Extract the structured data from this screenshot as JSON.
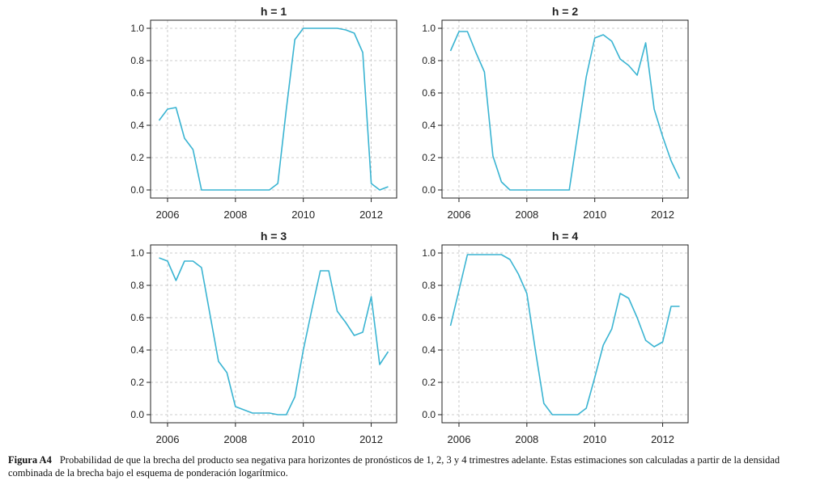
{
  "chart_data": [
    {
      "type": "line",
      "title": "h = 1",
      "xlabel": "",
      "ylabel": "",
      "xlim": [
        2005.5,
        2012.75
      ],
      "ylim": [
        -0.05,
        1.05
      ],
      "xticks": [
        "2006",
        "2008",
        "2010",
        "2012"
      ],
      "yticks": [
        "0.0",
        "0.2",
        "0.4",
        "0.6",
        "0.8",
        "1.0"
      ],
      "grid": true,
      "color": "#3ab4d2",
      "x": [
        2005.75,
        2006.0,
        2006.25,
        2006.5,
        2006.75,
        2007.0,
        2007.25,
        2007.5,
        2007.75,
        2008.0,
        2008.25,
        2008.5,
        2008.75,
        2009.0,
        2009.25,
        2009.5,
        2009.75,
        2010.0,
        2010.25,
        2010.5,
        2010.75,
        2011.0,
        2011.25,
        2011.5,
        2011.75,
        2012.0,
        2012.25,
        2012.5
      ],
      "y": [
        0.43,
        0.5,
        0.51,
        0.32,
        0.25,
        0.0,
        0.0,
        0.0,
        0.0,
        0.0,
        0.0,
        0.0,
        0.0,
        0.0,
        0.04,
        0.5,
        0.93,
        1.0,
        1.0,
        1.0,
        1.0,
        1.0,
        0.99,
        0.97,
        0.85,
        0.04,
        0.0,
        0.02
      ]
    },
    {
      "type": "line",
      "title": "h = 2",
      "xlabel": "",
      "ylabel": "",
      "xlim": [
        2005.5,
        2012.75
      ],
      "ylim": [
        -0.05,
        1.05
      ],
      "xticks": [
        "2006",
        "2008",
        "2010",
        "2012"
      ],
      "yticks": [
        "0.0",
        "0.2",
        "0.4",
        "0.6",
        "0.8",
        "1.0"
      ],
      "grid": true,
      "color": "#3ab4d2",
      "x": [
        2005.75,
        2006.0,
        2006.25,
        2006.5,
        2006.75,
        2007.0,
        2007.25,
        2007.5,
        2007.75,
        2008.0,
        2008.25,
        2008.5,
        2008.75,
        2009.0,
        2009.25,
        2009.5,
        2009.75,
        2010.0,
        2010.25,
        2010.5,
        2010.75,
        2011.0,
        2011.25,
        2011.5,
        2011.75,
        2012.0,
        2012.25,
        2012.5
      ],
      "y": [
        0.86,
        0.98,
        0.98,
        0.85,
        0.73,
        0.21,
        0.05,
        0.0,
        0.0,
        0.0,
        0.0,
        0.0,
        0.0,
        0.0,
        0.0,
        0.35,
        0.7,
        0.94,
        0.96,
        0.92,
        0.81,
        0.77,
        0.71,
        0.91,
        0.5,
        0.33,
        0.18,
        0.07
      ]
    },
    {
      "type": "line",
      "title": "h = 3",
      "xlabel": "",
      "ylabel": "",
      "xlim": [
        2005.5,
        2012.75
      ],
      "ylim": [
        -0.05,
        1.05
      ],
      "xticks": [
        "2006",
        "2008",
        "2010",
        "2012"
      ],
      "yticks": [
        "0.0",
        "0.2",
        "0.4",
        "0.6",
        "0.8",
        "1.0"
      ],
      "grid": true,
      "color": "#3ab4d2",
      "x": [
        2005.75,
        2006.0,
        2006.25,
        2006.5,
        2006.75,
        2007.0,
        2007.25,
        2007.5,
        2007.75,
        2008.0,
        2008.25,
        2008.5,
        2008.75,
        2009.0,
        2009.25,
        2009.5,
        2009.75,
        2010.0,
        2010.25,
        2010.5,
        2010.75,
        2011.0,
        2011.25,
        2011.5,
        2011.75,
        2012.0,
        2012.25,
        2012.5
      ],
      "y": [
        0.97,
        0.95,
        0.83,
        0.95,
        0.95,
        0.91,
        0.62,
        0.33,
        0.26,
        0.05,
        0.03,
        0.01,
        0.01,
        0.01,
        0.0,
        0.0,
        0.11,
        0.4,
        0.65,
        0.89,
        0.89,
        0.64,
        0.57,
        0.49,
        0.51,
        0.73,
        0.31,
        0.39
      ]
    },
    {
      "type": "line",
      "title": "h = 4",
      "xlabel": "",
      "ylabel": "",
      "xlim": [
        2005.5,
        2012.75
      ],
      "ylim": [
        -0.05,
        1.05
      ],
      "xticks": [
        "2006",
        "2008",
        "2010",
        "2012"
      ],
      "yticks": [
        "0.0",
        "0.2",
        "0.4",
        "0.6",
        "0.8",
        "1.0"
      ],
      "grid": true,
      "color": "#3ab4d2",
      "x": [
        2005.75,
        2006.0,
        2006.25,
        2006.5,
        2006.75,
        2007.0,
        2007.25,
        2007.5,
        2007.75,
        2008.0,
        2008.25,
        2008.5,
        2008.75,
        2009.0,
        2009.25,
        2009.5,
        2009.75,
        2010.0,
        2010.25,
        2010.5,
        2010.75,
        2011.0,
        2011.25,
        2011.5,
        2011.75,
        2012.0,
        2012.25,
        2012.5
      ],
      "y": [
        0.55,
        0.77,
        0.99,
        0.99,
        0.99,
        0.99,
        0.99,
        0.96,
        0.87,
        0.75,
        0.4,
        0.07,
        0.0,
        0.0,
        0.0,
        0.0,
        0.04,
        0.23,
        0.43,
        0.53,
        0.75,
        0.72,
        0.6,
        0.46,
        0.42,
        0.45,
        0.67,
        0.67
      ]
    }
  ],
  "caption": {
    "label": "Figura A4",
    "text": "Probabilidad de que la brecha del producto sea negativa para horizontes de pronósticos de 1, 2, 3 y 4 trimestres adelante. Estas estimaciones son calculadas a partir de la densidad combinada de la brecha bajo el esquema de ponderación logarítmico."
  }
}
